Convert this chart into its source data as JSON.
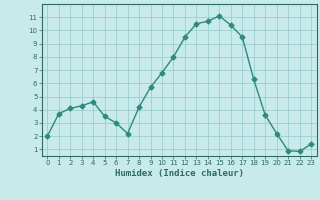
{
  "x": [
    0,
    1,
    2,
    3,
    4,
    5,
    6,
    7,
    8,
    9,
    10,
    11,
    12,
    13,
    14,
    15,
    16,
    17,
    18,
    19,
    20,
    21,
    22,
    23
  ],
  "y": [
    2.0,
    3.7,
    4.1,
    4.3,
    4.6,
    3.5,
    3.0,
    2.2,
    4.2,
    5.7,
    6.8,
    8.0,
    9.5,
    10.5,
    10.7,
    11.1,
    10.4,
    9.5,
    6.3,
    3.6,
    2.2,
    0.9,
    0.85,
    1.4
  ],
  "line_color": "#2e8b7a",
  "marker": "D",
  "marker_size": 2.5,
  "bg_color": "#c8eaea",
  "grid_color": "#9ecece",
  "xlabel": "Humidex (Indice chaleur)",
  "xlim": [
    -0.5,
    23.5
  ],
  "ylim": [
    0.5,
    12.0
  ],
  "yticks": [
    1,
    2,
    3,
    4,
    5,
    6,
    7,
    8,
    9,
    10,
    11
  ],
  "xticks": [
    0,
    1,
    2,
    3,
    4,
    5,
    6,
    7,
    8,
    9,
    10,
    11,
    12,
    13,
    14,
    15,
    16,
    17,
    18,
    19,
    20,
    21,
    22,
    23
  ],
  "axis_label_color": "#2e6b5a",
  "tick_color": "#2e6b5a"
}
